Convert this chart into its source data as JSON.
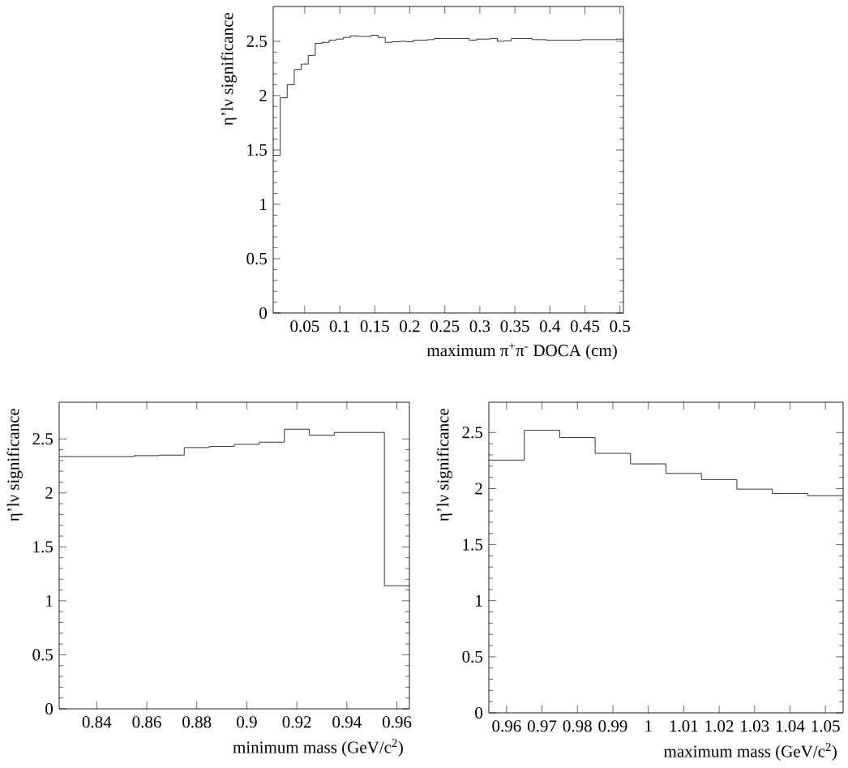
{
  "chart_data": [
    {
      "type": "histogram",
      "xlabel": "maximum π$^{+}$π$^{-}$ DOCA (cm)",
      "ylabel": "η’lν significance",
      "color": "#000000",
      "bins": [
        0.005,
        0.015,
        0.025,
        0.035,
        0.045,
        0.055,
        0.065,
        0.075,
        0.085,
        0.095,
        0.105,
        0.115,
        0.125,
        0.135,
        0.145,
        0.155,
        0.165,
        0.175,
        0.185,
        0.195,
        0.205,
        0.215,
        0.225,
        0.235,
        0.245,
        0.255,
        0.265,
        0.275,
        0.285,
        0.295,
        0.305,
        0.315,
        0.325,
        0.335,
        0.345,
        0.355,
        0.365,
        0.375,
        0.385,
        0.395,
        0.405,
        0.415,
        0.425,
        0.435,
        0.445,
        0.455,
        0.465,
        0.475,
        0.485,
        0.495,
        0.505
      ],
      "values": [
        1.45,
        1.98,
        2.1,
        2.24,
        2.29,
        2.37,
        2.48,
        2.49,
        2.51,
        2.52,
        2.535,
        2.55,
        2.545,
        2.545,
        2.555,
        2.535,
        2.49,
        2.495,
        2.5,
        2.495,
        2.51,
        2.51,
        2.515,
        2.525,
        2.525,
        2.525,
        2.525,
        2.525,
        2.51,
        2.52,
        2.52,
        2.525,
        2.5,
        2.505,
        2.525,
        2.525,
        2.525,
        2.515,
        2.515,
        2.51,
        2.51,
        2.51,
        2.51,
        2.51,
        2.515,
        2.515,
        2.515,
        2.515,
        2.515,
        2.52
      ],
      "xlim": [
        0.005,
        0.505
      ],
      "ylim": [
        0,
        2.82
      ],
      "xticks": [
        0.05,
        0.1,
        0.15,
        0.2,
        0.25,
        0.3,
        0.35,
        0.4,
        0.45,
        0.5
      ],
      "yticks": [
        0,
        0.5,
        1,
        1.5,
        2,
        2.5
      ]
    },
    {
      "type": "histogram",
      "xlabel": "minimum mass (GeV/c$^{2}$)",
      "ylabel": "η’lν significance",
      "color": "#000000",
      "bins": [
        0.825,
        0.835,
        0.845,
        0.855,
        0.865,
        0.875,
        0.885,
        0.895,
        0.905,
        0.915,
        0.925,
        0.935,
        0.945,
        0.955,
        0.965
      ],
      "values": [
        2.337,
        2.337,
        2.337,
        2.345,
        2.35,
        2.42,
        2.43,
        2.45,
        2.47,
        2.59,
        2.535,
        2.56,
        2.56,
        1.14
      ],
      "xlim": [
        0.825,
        0.965
      ],
      "ylim": [
        0,
        2.84
      ],
      "xticks": [
        0.84,
        0.86,
        0.88,
        0.9,
        0.92,
        0.94,
        0.96
      ],
      "yticks": [
        0,
        0.5,
        1,
        1.5,
        2,
        2.5
      ]
    },
    {
      "type": "histogram",
      "xlabel": "maximum mass (GeV/c$^{2}$)",
      "ylabel": "η’lν significance",
      "color": "#000000",
      "bins": [
        0.955,
        0.965,
        0.975,
        0.985,
        0.995,
        1.005,
        1.015,
        1.025,
        1.035,
        1.045,
        1.055
      ],
      "values": [
        2.254,
        2.52,
        2.455,
        2.314,
        2.22,
        2.135,
        2.08,
        1.995,
        1.957,
        1.937
      ],
      "xlim": [
        0.955,
        1.055
      ],
      "ylim": [
        0,
        2.77
      ],
      "xticks": [
        0.96,
        0.97,
        0.98,
        0.99,
        1,
        1.01,
        1.02,
        1.03,
        1.04,
        1.05
      ],
      "yticks": [
        0,
        0.5,
        1,
        1.5,
        2,
        2.5
      ]
    }
  ]
}
